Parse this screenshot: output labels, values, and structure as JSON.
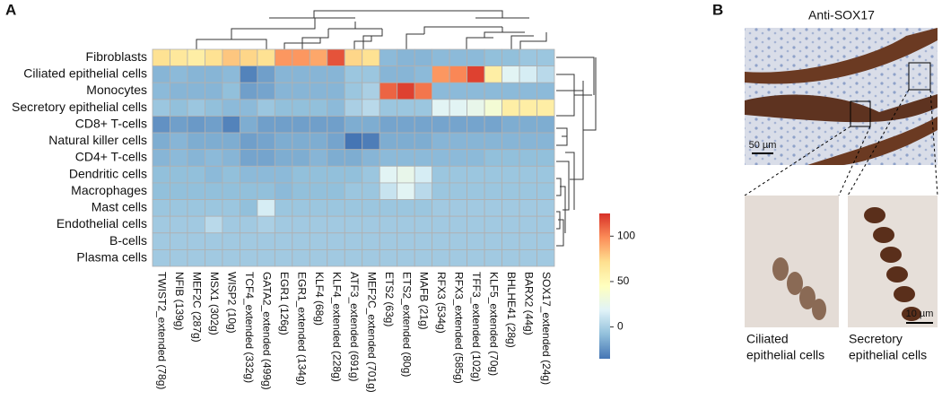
{
  "chart_data": {
    "type": "heatmap",
    "panel_label": "A",
    "x": [
      "TWIST2_extended (78g)",
      "NFIB (139g)",
      "MEF2C (287g)",
      "MSX1 (302g)",
      "WISP2 (10g)",
      "TCF4_extended (332g)",
      "GATA2_extended (499g)",
      "EGR1 (126g)",
      "EGR1_extended (134g)",
      "KLF4 (68g)",
      "KLF4_extended (228g)",
      "ATF3_extended (691g)",
      "MEF2C_extended (701g)",
      "ETS2 (63g)",
      "ETS2_extended (80g)",
      "MAFB (21g)",
      "RFX3 (534g)",
      "RFX3_extended (585g)",
      "TFF3_extended (102g)",
      "KLF5_extended (70g)",
      "BHLHE41 (28g)",
      "BARX2 (44g)",
      "SOX17_extended (24g)"
    ],
    "y": [
      "Fibroblasts",
      "Ciliated epithelial cells",
      "Monocytes",
      "Secretory epithelial cells",
      "CD8+ T-cells",
      "Natural killer cells",
      "CD4+ T-cells",
      "Dendritic cells",
      "Macrophages",
      "Mast cells",
      "Endothelial cells",
      "B-cells",
      "Plasma cells"
    ],
    "values": [
      [
        70,
        65,
        60,
        70,
        80,
        75,
        70,
        95,
        95,
        90,
        115,
        75,
        70,
        -10,
        -12,
        -12,
        -10,
        -10,
        -10,
        -8,
        -8,
        -5,
        -5
      ],
      [
        -12,
        -10,
        -12,
        -12,
        -10,
        -30,
        -20,
        -12,
        -12,
        -12,
        -12,
        -5,
        -5,
        -12,
        -12,
        -10,
        95,
        100,
        120,
        60,
        20,
        15,
        5
      ],
      [
        -10,
        -12,
        -12,
        -12,
        -8,
        -20,
        -18,
        -12,
        -12,
        -12,
        -12,
        -5,
        0,
        110,
        120,
        105,
        -10,
        -10,
        -10,
        -10,
        -10,
        -10,
        -10
      ],
      [
        -5,
        -8,
        -5,
        -8,
        -10,
        -10,
        -5,
        -8,
        -8,
        -8,
        -10,
        0,
        5,
        -5,
        -5,
        -5,
        20,
        20,
        25,
        35,
        60,
        60,
        60
      ],
      [
        -25,
        -20,
        -22,
        -20,
        -30,
        -15,
        -20,
        -20,
        -20,
        -20,
        -20,
        -15,
        -15,
        -18,
        -18,
        -18,
        -18,
        -18,
        -18,
        -18,
        -15,
        -15,
        -15
      ],
      [
        -15,
        -12,
        -15,
        -15,
        -15,
        -20,
        -18,
        -15,
        -15,
        -15,
        -18,
        -35,
        -32,
        -15,
        -15,
        -15,
        -12,
        -12,
        -12,
        -12,
        -12,
        -12,
        -12
      ],
      [
        -12,
        -10,
        -12,
        -10,
        -12,
        -18,
        -18,
        -15,
        -15,
        -12,
        -15,
        -15,
        -12,
        -10,
        -10,
        -10,
        -10,
        -10,
        -10,
        -8,
        -8,
        -8,
        -8
      ],
      [
        -8,
        -8,
        -8,
        -10,
        -8,
        -10,
        -10,
        -10,
        -8,
        -8,
        -8,
        -8,
        -5,
        20,
        25,
        15,
        -5,
        -5,
        -5,
        -5,
        -5,
        -5,
        -5
      ],
      [
        -8,
        -8,
        -8,
        -8,
        -8,
        -8,
        -8,
        -10,
        -8,
        -8,
        -8,
        -5,
        -5,
        10,
        20,
        5,
        -5,
        -5,
        -5,
        -5,
        -5,
        -5,
        -5
      ],
      [
        -5,
        -5,
        -5,
        -5,
        -5,
        -8,
        15,
        -5,
        -5,
        -5,
        -5,
        -5,
        -5,
        -5,
        -5,
        -5,
        -3,
        -3,
        -3,
        -3,
        -3,
        -3,
        -3
      ],
      [
        -3,
        -3,
        -3,
        5,
        -3,
        -3,
        0,
        -3,
        -3,
        -3,
        -3,
        -3,
        -3,
        -3,
        -3,
        -3,
        -3,
        -3,
        -3,
        -3,
        -3,
        -3,
        -3
      ],
      [
        -3,
        -3,
        -3,
        -3,
        -3,
        -3,
        -3,
        -3,
        -3,
        -3,
        -3,
        -3,
        -3,
        -3,
        -3,
        -3,
        -3,
        -3,
        -3,
        -3,
        -3,
        -3,
        -3
      ],
      [
        -3,
        -3,
        -3,
        -3,
        -3,
        -3,
        -3,
        -3,
        -3,
        -3,
        -3,
        -3,
        -3,
        -3,
        -3,
        -3,
        -3,
        -3,
        -3,
        -3,
        -3,
        -3,
        -3
      ]
    ],
    "zlim": [
      -35,
      125
    ],
    "zticks": [
      0,
      50,
      100
    ],
    "colors": [
      "#4575b4",
      "#91bfdb",
      "#e0f3f8",
      "#ffffbf",
      "#fee090",
      "#fc8d59",
      "#d73027"
    ]
  },
  "panel_b": {
    "label": "B",
    "title": "Anti-SOX17",
    "scale_main": "50 µm",
    "scale_inset": "10 µm",
    "inset_left": [
      "Ciliated",
      "epithelial cells"
    ],
    "inset_right": [
      "Secretory",
      "epithelial cells"
    ]
  }
}
